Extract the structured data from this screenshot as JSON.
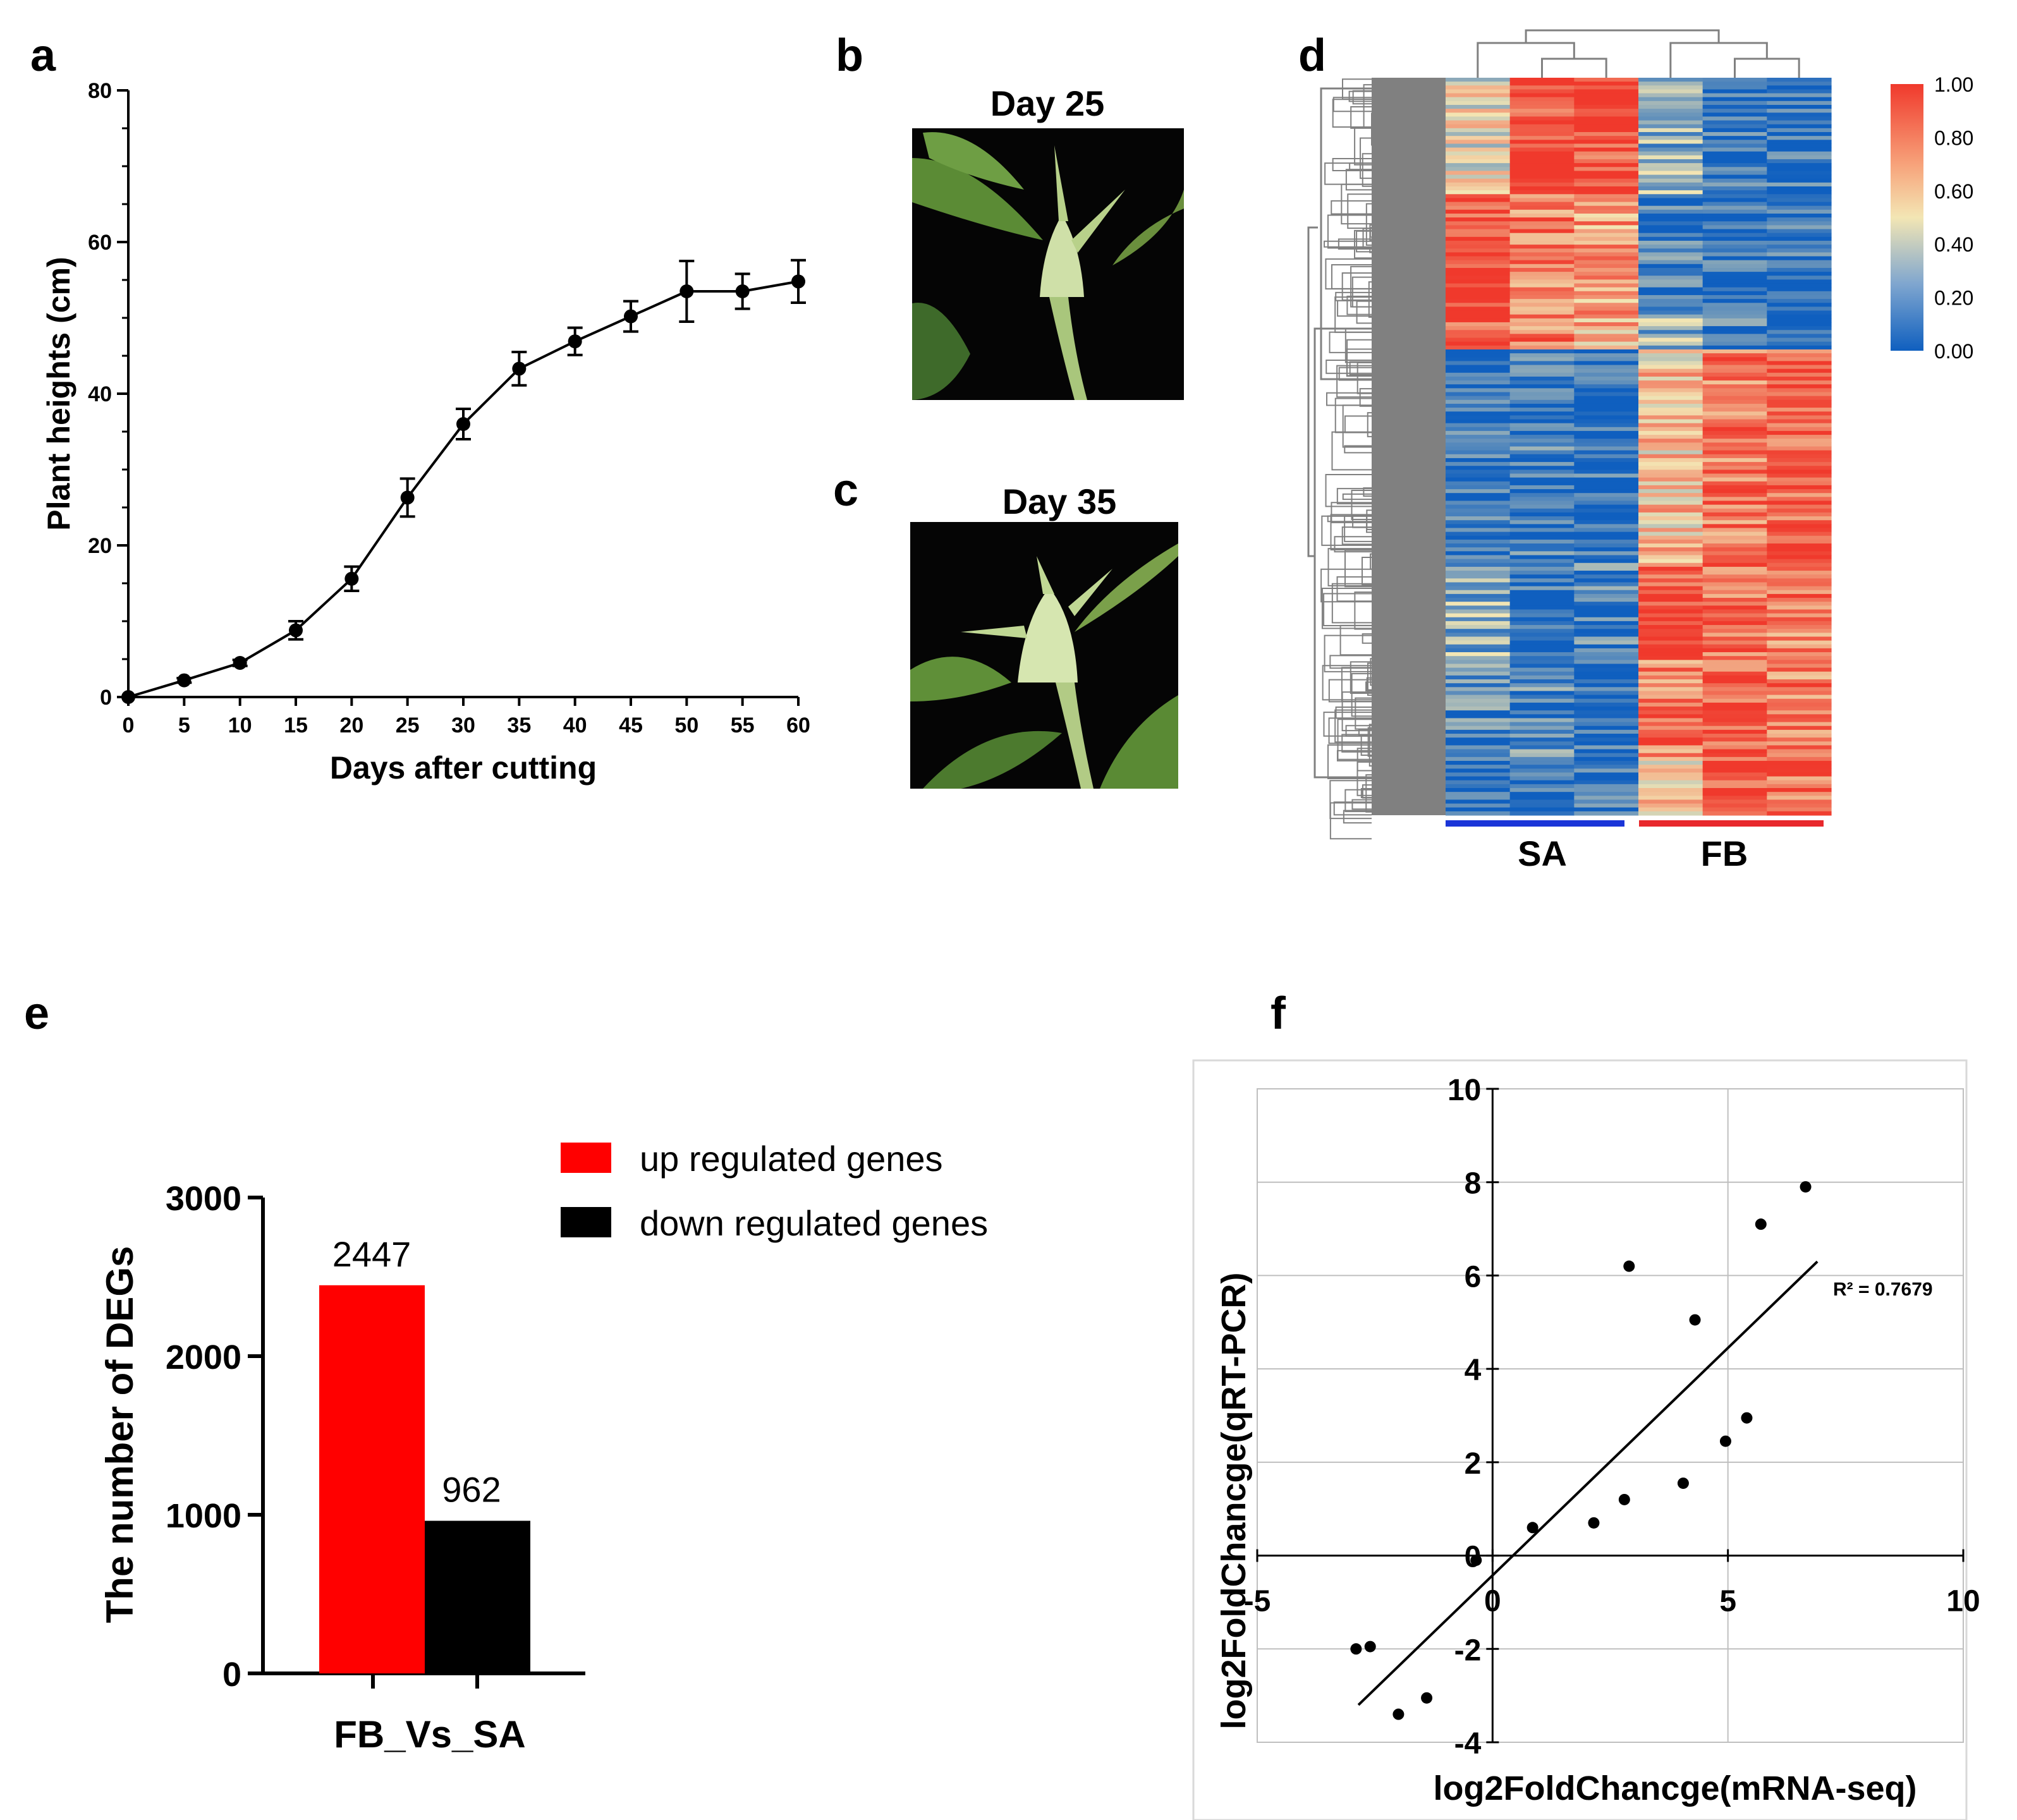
{
  "panel_labels": {
    "a": "a",
    "b": "b",
    "c": "c",
    "d": "d",
    "e": "e",
    "f": "f"
  },
  "colors": {
    "heat_low": "#0f5fbf",
    "heat_mid": "#f3e6b4",
    "heat_high": "#f0392c",
    "dendrogram": "#808080",
    "bar_up": "#ff0000",
    "bar_down": "#000000",
    "sa_line": "#1a35d8",
    "fb_line": "#e8282c",
    "photo_bg": "#050505",
    "leaf": "#5b8b35",
    "bud": "#cfe0a8"
  },
  "chart_data": [
    {
      "id": "a",
      "type": "line",
      "title": "",
      "xlabel": "Days after cutting",
      "ylabel": "Plant heights (cm)",
      "xlim": [
        0,
        60
      ],
      "ylim": [
        0,
        80
      ],
      "x_ticks": [
        0,
        5,
        10,
        15,
        20,
        25,
        30,
        35,
        40,
        45,
        50,
        55,
        60
      ],
      "y_ticks": [
        0,
        20,
        40,
        60,
        80
      ],
      "x": [
        0,
        5,
        10,
        15,
        20,
        25,
        30,
        35,
        40,
        45,
        50,
        55,
        60
      ],
      "y": [
        0,
        2.2,
        4.5,
        8.8,
        15.6,
        26.3,
        36.0,
        43.3,
        46.9,
        50.2,
        53.5,
        53.5,
        54.8
      ],
      "error": [
        0,
        0.3,
        0.4,
        1.2,
        1.6,
        2.5,
        2.0,
        2.2,
        1.8,
        2.0,
        4.0,
        2.3,
        2.8
      ]
    },
    {
      "id": "d",
      "type": "heatmap",
      "groups": [
        "SA",
        "FB"
      ],
      "columns": 6,
      "colorbar_ticks": [
        "1.00",
        "0.80",
        "0.60",
        "0.40",
        "0.20",
        "0.00"
      ],
      "vmin": 0,
      "vmax": 1,
      "row_blocks": [
        {
          "rows": 30,
          "values": [
            0.5,
            0.95,
            0.95,
            0.3,
            0.05,
            0.05
          ]
        },
        {
          "rows": 32,
          "values": [
            0.95,
            0.8,
            0.7,
            0.1,
            0.05,
            0.05
          ]
        },
        {
          "rows": 8,
          "values": [
            0.9,
            0.8,
            0.65,
            0.3,
            0.1,
            0.1
          ]
        },
        {
          "rows": 55,
          "values": [
            0.05,
            0.1,
            0.05,
            0.6,
            0.8,
            0.9
          ]
        },
        {
          "rows": 25,
          "values": [
            0.3,
            0.05,
            0.15,
            0.95,
            0.85,
            0.8
          ]
        },
        {
          "rows": 25,
          "values": [
            0.15,
            0.15,
            0.05,
            0.8,
            0.9,
            0.8
          ]
        },
        {
          "rows": 15,
          "values": [
            0.05,
            0.05,
            0.05,
            0.6,
            0.95,
            0.85
          ]
        }
      ]
    },
    {
      "id": "e",
      "type": "bar",
      "categories": [
        "FB_Vs_SA"
      ],
      "series": [
        {
          "name": "up regulated genes",
          "values": [
            2447
          ]
        },
        {
          "name": "down regulated genes",
          "values": [
            962
          ]
        }
      ],
      "data_labels": [
        "2447",
        "962"
      ],
      "xlabel": "FB_Vs_SA",
      "ylabel": "The number of DEGs",
      "ylim": [
        0,
        3000
      ],
      "y_ticks": [
        0,
        1000,
        2000,
        3000
      ],
      "legend": "top-right"
    },
    {
      "id": "f",
      "type": "scatter",
      "xlabel": "log2FoldChancge(mRNA-seq)",
      "ylabel": "log2FoldChancge(qRT-PCR)",
      "xlim": [
        -5,
        10
      ],
      "ylim": [
        -4,
        10
      ],
      "x_ticks": [
        -5,
        0,
        5,
        10
      ],
      "y_ticks": [
        -4,
        -2,
        0,
        2,
        4,
        6,
        8,
        10
      ],
      "points": [
        [
          -2.9,
          -2.0
        ],
        [
          -2.6,
          -1.95
        ],
        [
          -2.0,
          -3.4
        ],
        [
          -1.4,
          -3.05
        ],
        [
          -0.35,
          -0.1
        ],
        [
          0.85,
          0.6
        ],
        [
          2.15,
          0.7
        ],
        [
          2.8,
          1.2
        ],
        [
          2.9,
          6.2
        ],
        [
          4.05,
          1.55
        ],
        [
          4.3,
          5.05
        ],
        [
          4.95,
          2.45
        ],
        [
          5.4,
          2.95
        ],
        [
          5.7,
          7.1
        ],
        [
          6.65,
          7.9
        ]
      ],
      "trendline": {
        "x1": -2.85,
        "y1": -3.2,
        "x2": 6.9,
        "y2": 6.3
      },
      "r2_label": "R² = 0.7679"
    }
  ],
  "photos": {
    "b": {
      "title": "Day 25"
    },
    "c": {
      "title": "Day 35"
    }
  },
  "heatmap_groups": {
    "sa": "SA",
    "fb": "FB"
  }
}
